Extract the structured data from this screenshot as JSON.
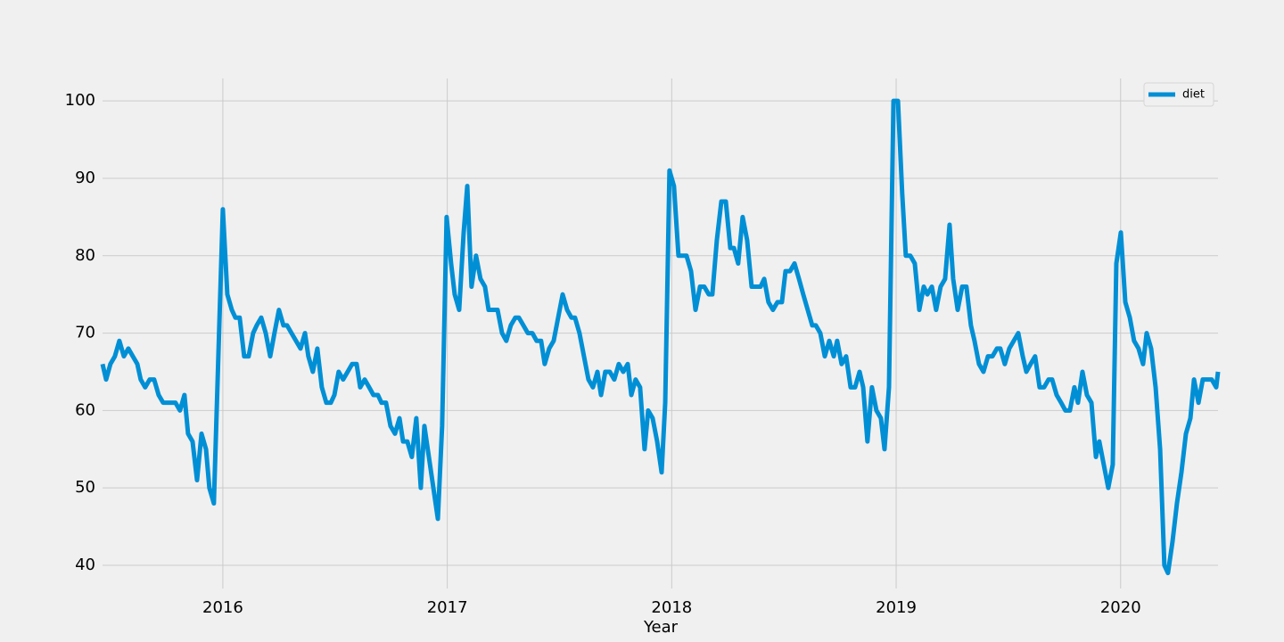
{
  "chart_data": {
    "type": "line",
    "x_label": "Year",
    "x": [
      2015.464,
      2015.48,
      2015.499,
      2015.519,
      2015.539,
      2015.559,
      2015.579,
      2015.599,
      2015.619,
      2015.634,
      2015.654,
      2015.674,
      2015.694,
      2015.714,
      2015.734,
      2015.754,
      2015.77,
      2015.789,
      2015.809,
      2015.829,
      2015.845,
      2015.865,
      2015.885,
      2015.905,
      2015.925,
      2015.94,
      2015.96,
      2015.98,
      2016.0,
      2016.02,
      2016.04,
      2016.056,
      2016.075,
      2016.095,
      2016.115,
      2016.135,
      2016.151,
      2016.171,
      2016.191,
      2016.211,
      2016.23,
      2016.25,
      2016.27,
      2016.286,
      2016.306,
      2016.326,
      2016.346,
      2016.366,
      2016.381,
      2016.401,
      2016.421,
      2016.441,
      2016.461,
      2016.481,
      2016.497,
      2016.516,
      2016.536,
      2016.556,
      2016.576,
      2016.596,
      2016.612,
      2016.632,
      2016.652,
      2016.671,
      2016.691,
      2016.707,
      2016.727,
      2016.747,
      2016.767,
      2016.787,
      2016.803,
      2016.822,
      2016.842,
      2016.862,
      2016.882,
      2016.898,
      2016.918,
      2016.938,
      2016.958,
      2016.977,
      2016.997,
      2017.017,
      2017.033,
      2017.053,
      2017.073,
      2017.089,
      2017.108,
      2017.128,
      2017.148,
      2017.168,
      2017.184,
      2017.204,
      2017.224,
      2017.244,
      2017.263,
      2017.283,
      2017.303,
      2017.319,
      2017.339,
      2017.359,
      2017.379,
      2017.398,
      2017.418,
      2017.434,
      2017.454,
      2017.474,
      2017.494,
      2017.514,
      2017.534,
      2017.553,
      2017.569,
      2017.589,
      2017.609,
      2017.629,
      2017.649,
      2017.669,
      2017.685,
      2017.704,
      2017.724,
      2017.744,
      2017.764,
      2017.784,
      2017.804,
      2017.82,
      2017.839,
      2017.859,
      2017.879,
      2017.895,
      2017.915,
      2017.935,
      2017.955,
      2017.971,
      2017.99,
      2018.01,
      2018.03,
      2018.046,
      2018.066,
      2018.086,
      2018.106,
      2018.126,
      2018.145,
      2018.165,
      2018.181,
      2018.201,
      2018.221,
      2018.241,
      2018.261,
      2018.277,
      2018.296,
      2018.316,
      2018.336,
      2018.356,
      2018.376,
      2018.396,
      2018.412,
      2018.431,
      2018.451,
      2018.471,
      2018.491,
      2018.507,
      2018.527,
      2018.547,
      2018.567,
      2018.586,
      2018.606,
      2018.626,
      2018.642,
      2018.662,
      2018.682,
      2018.702,
      2018.722,
      2018.737,
      2018.757,
      2018.777,
      2018.797,
      2018.817,
      2018.837,
      2018.853,
      2018.872,
      2018.892,
      2018.912,
      2018.932,
      2018.948,
      2018.968,
      2018.988,
      2019.008,
      2019.027,
      2019.043,
      2019.063,
      2019.083,
      2019.103,
      2019.123,
      2019.139,
      2019.159,
      2019.178,
      2019.198,
      2019.218,
      2019.238,
      2019.254,
      2019.274,
      2019.294,
      2019.313,
      2019.333,
      2019.349,
      2019.369,
      2019.389,
      2019.409,
      2019.429,
      2019.449,
      2019.464,
      2019.484,
      2019.504,
      2019.524,
      2019.544,
      2019.564,
      2019.58,
      2019.599,
      2019.619,
      2019.639,
      2019.659,
      2019.679,
      2019.695,
      2019.715,
      2019.735,
      2019.754,
      2019.774,
      2019.794,
      2019.81,
      2019.83,
      2019.85,
      2019.87,
      2019.89,
      2019.905,
      2019.925,
      2019.945,
      2019.965,
      2019.981,
      2020.001,
      2020.021,
      2020.041,
      2020.06,
      2020.08,
      2020.1,
      2020.116,
      2020.136,
      2020.156,
      2020.176,
      2020.195,
      2020.211,
      2020.231,
      2020.251,
      2020.271,
      2020.291,
      2020.311,
      2020.327,
      2020.347,
      2020.366,
      2020.386,
      2020.406,
      2020.426,
      2020.434
    ],
    "series": [
      {
        "name": "diet",
        "color": "#008fd5",
        "values": [
          66,
          64,
          66,
          67,
          69,
          67,
          68,
          67,
          66,
          64,
          63,
          64,
          64,
          62,
          61,
          61,
          61,
          61,
          60,
          62,
          57,
          56,
          51,
          57,
          55,
          50,
          48,
          67,
          86,
          75,
          73,
          72,
          72,
          67,
          67,
          70,
          71,
          72,
          70,
          67,
          70,
          73,
          71,
          71,
          70,
          69,
          68,
          70,
          67,
          65,
          68,
          63,
          61,
          61,
          62,
          65,
          64,
          65,
          66,
          66,
          63,
          64,
          63,
          62,
          62,
          61,
          61,
          58,
          57,
          59,
          56,
          56,
          54,
          59,
          50,
          58,
          54,
          50,
          46,
          58,
          85,
          79,
          75,
          73,
          83,
          89,
          76,
          80,
          77,
          76,
          73,
          73,
          73,
          70,
          69,
          71,
          72,
          72,
          71,
          70,
          70,
          69,
          69,
          66,
          68,
          69,
          72,
          75,
          73,
          72,
          72,
          70,
          67,
          64,
          63,
          65,
          62,
          65,
          65,
          64,
          66,
          65,
          66,
          62,
          64,
          63,
          55,
          60,
          59,
          56,
          52,
          61,
          91,
          89,
          80,
          80,
          80,
          78,
          73,
          76,
          76,
          75,
          75,
          82,
          87,
          87,
          81,
          81,
          79,
          85,
          82,
          76,
          76,
          76,
          77,
          74,
          73,
          74,
          74,
          78,
          78,
          79,
          77,
          75,
          73,
          71,
          71,
          70,
          67,
          69,
          67,
          69,
          66,
          67,
          63,
          63,
          65,
          63,
          56,
          63,
          60,
          59,
          55,
          63,
          100,
          100,
          88,
          80,
          80,
          79,
          73,
          76,
          75,
          76,
          73,
          76,
          77,
          84,
          77,
          73,
          76,
          76,
          71,
          69,
          66,
          65,
          67,
          67,
          68,
          68,
          66,
          68,
          69,
          70,
          67,
          65,
          66,
          67,
          63,
          63,
          64,
          64,
          62,
          61,
          60,
          60,
          63,
          61,
          65,
          62,
          61,
          54,
          56,
          53,
          50,
          53,
          79,
          83,
          74,
          72,
          69,
          68,
          66,
          70,
          68,
          63,
          55,
          40,
          39,
          43,
          48,
          52,
          57,
          59,
          64,
          61,
          64,
          64,
          64,
          63,
          65
        ]
      }
    ],
    "xlim": [
      2015.464,
      2020.434
    ],
    "xticks": [
      2016,
      2017,
      2018,
      2019,
      2020
    ],
    "ylim": [
      37,
      102.9
    ],
    "yticks": [
      40,
      50,
      60,
      70,
      80,
      90,
      100
    ],
    "grid": true,
    "legend": "upper right"
  }
}
